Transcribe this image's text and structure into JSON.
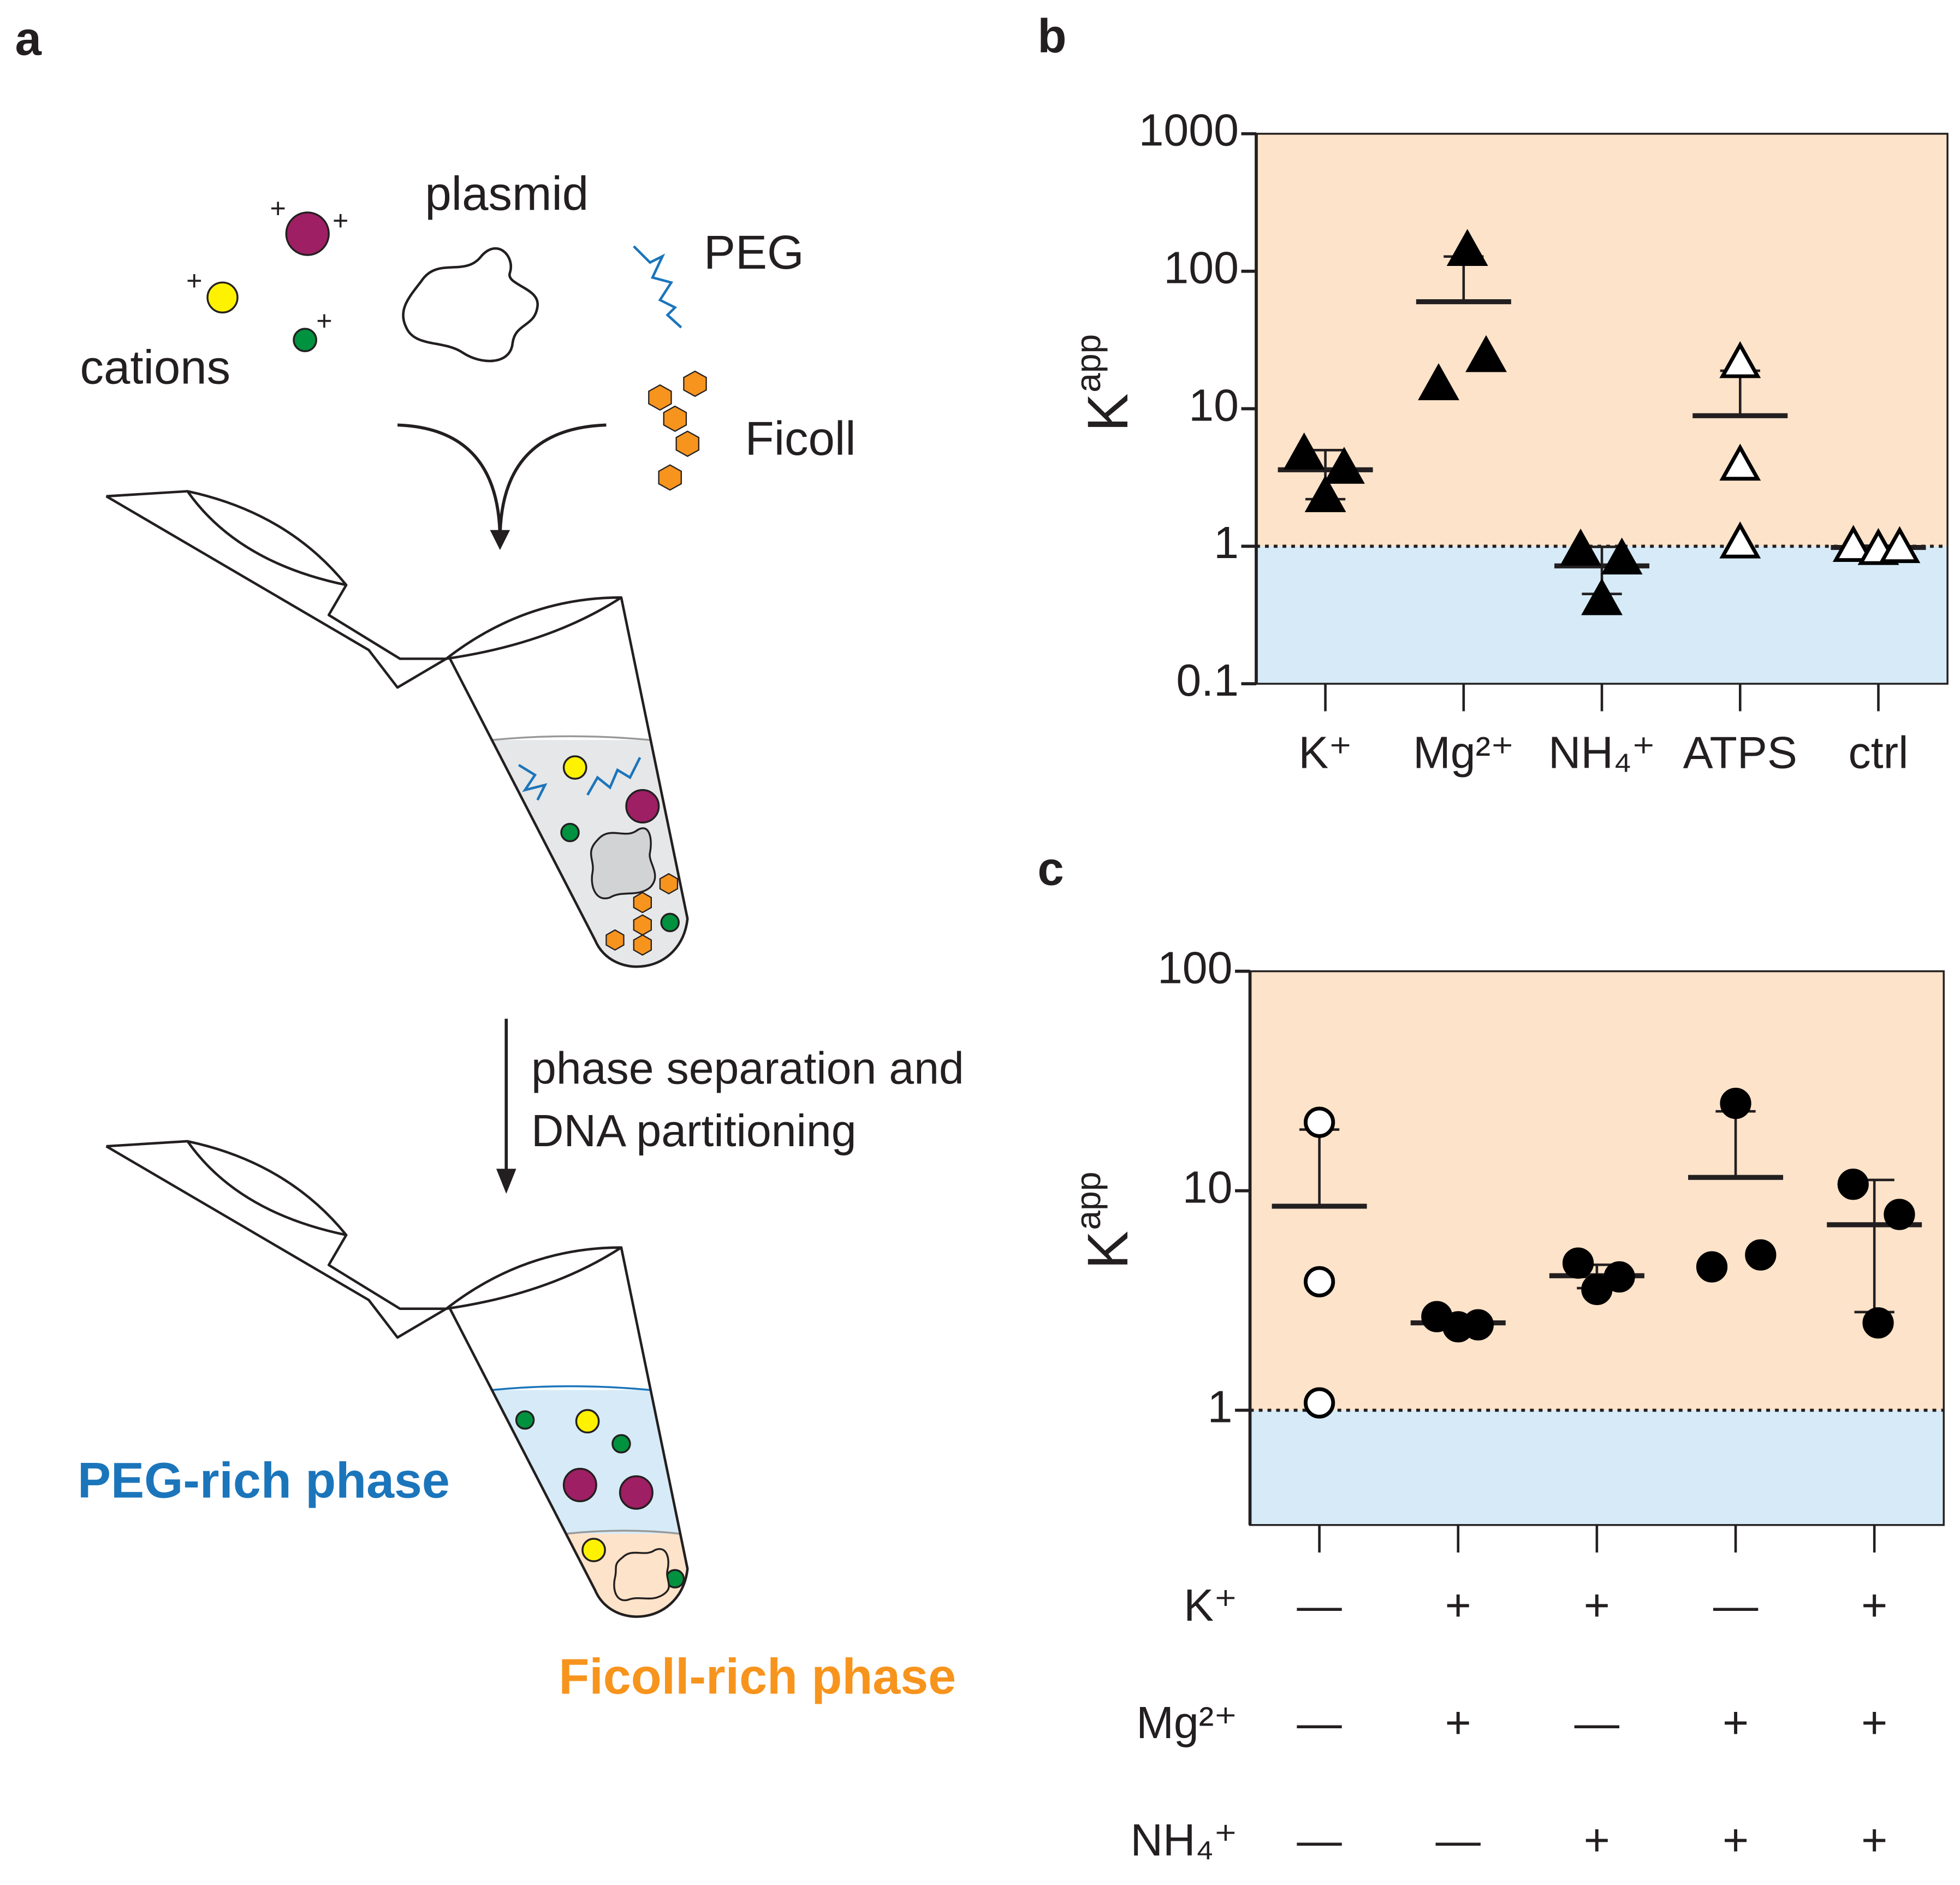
{
  "diagram": {
    "panel_label": "a",
    "plasmid": "plasmid",
    "peg": "PEG",
    "cations": "cations",
    "ficoll": "Ficoll",
    "charge": "+",
    "step": [
      "phase separation and",
      "DNA partitioning"
    ],
    "peg_phase": "PEG-rich phase",
    "ficoll_phase": "Ficoll-rich phase"
  },
  "chart_data": [
    {
      "type": "scatter",
      "panel_label": "b",
      "ylabel": "K",
      "ylabel_sup": "app",
      "categories": [
        "K⁺",
        "Mg²⁺",
        "NH₄⁺",
        "ATPS",
        "ctrl"
      ],
      "log_y": true,
      "ylim": [
        0.1,
        1000
      ],
      "yticks": [
        0.1,
        1,
        10,
        100,
        1000
      ],
      "threshold": 1,
      "colors": {
        "above": "#fde3c9",
        "below": "#d6ebf7"
      },
      "marker": "triangle",
      "color": "#000000",
      "filled": [
        true,
        true,
        true,
        false,
        false
      ],
      "points": [
        [
          4.7,
          3.7,
          2.3
        ],
        [
          142,
          15,
          24
        ],
        [
          0.94,
          0.81,
          0.41
        ],
        [
          21.7,
          3.9,
          1.06
        ],
        [
          1.0,
          0.95,
          0.98
        ]
      ],
      "means": [
        3.6,
        60,
        0.72,
        8.9,
        0.98
      ],
      "sds": [
        1.4,
        68,
        0.27,
        10,
        0.03
      ]
    },
    {
      "type": "scatter",
      "panel_label": "c",
      "ylabel": "K",
      "ylabel_sup": "app",
      "categories": [
        null,
        null,
        null,
        null,
        null
      ],
      "log_y": true,
      "ylim": [
        0.3,
        100
      ],
      "yticks": [
        1,
        10,
        100
      ],
      "threshold": 1,
      "colors": {
        "above": "#fde3c9",
        "below": "#d6ebf7"
      },
      "marker": "circle",
      "color": "#000000",
      "filled": [
        false,
        true,
        true,
        true,
        true
      ],
      "points": [
        [
          20.5,
          3.85,
          1.08
        ],
        [
          2.67,
          2.4,
          2.45
        ],
        [
          4.68,
          3.55,
          4.05
        ],
        [
          25,
          4.5,
          5.1
        ],
        [
          10.7,
          7.8,
          2.5
        ]
      ],
      "means": [
        8.5,
        2.5,
        4.1,
        11.5,
        7.0
      ],
      "sds": [
        10.5,
        0.1,
        0.5,
        11.5,
        4.2
      ],
      "conditions": [
        {
          "name": "K⁺",
          "values": [
            "—",
            "+",
            "+",
            "—",
            "+"
          ]
        },
        {
          "name": "Mg²⁺",
          "values": [
            "—",
            "+",
            "—",
            "+",
            "+"
          ]
        },
        {
          "name": "NH₄⁺",
          "values": [
            "—",
            "—",
            "+",
            "+",
            "+"
          ]
        }
      ]
    }
  ]
}
